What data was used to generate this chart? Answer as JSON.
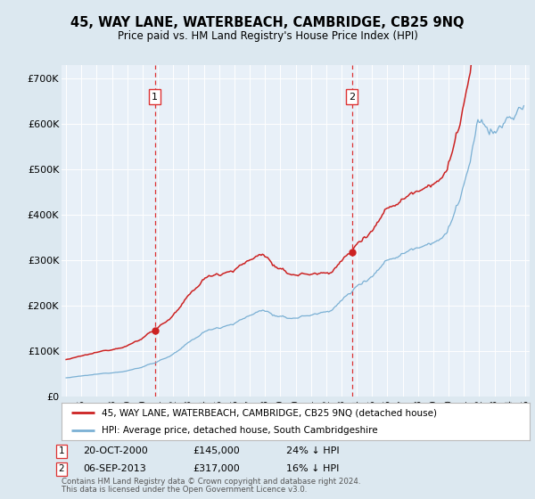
{
  "title": "45, WAY LANE, WATERBEACH, CAMBRIDGE, CB25 9NQ",
  "subtitle": "Price paid vs. HM Land Registry's House Price Index (HPI)",
  "yticks": [
    0,
    100000,
    200000,
    300000,
    400000,
    500000,
    600000,
    700000
  ],
  "ytick_labels": [
    "£0",
    "£100K",
    "£200K",
    "£300K",
    "£400K",
    "£500K",
    "£600K",
    "£700K"
  ],
  "ylim": [
    0,
    730000
  ],
  "xlim_start": 1994.7,
  "xlim_end": 2025.3,
  "hpi_color": "#7ab0d4",
  "price_color": "#cc2222",
  "dashed_color": "#dd3333",
  "marker1_date": 2000.8,
  "marker1_price": 145000,
  "marker2_date": 2013.68,
  "marker2_price": 317000,
  "legend1": "45, WAY LANE, WATERBEACH, CAMBRIDGE, CB25 9NQ (detached house)",
  "legend2": "HPI: Average price, detached house, South Cambridgeshire",
  "note1_label": "1",
  "note1_date": "20-OCT-2000",
  "note1_price": "£145,000",
  "note1_hpi": "24% ↓ HPI",
  "note2_label": "2",
  "note2_date": "06-SEP-2013",
  "note2_price": "£317,000",
  "note2_hpi": "16% ↓ HPI",
  "footnote1": "Contains HM Land Registry data © Crown copyright and database right 2024.",
  "footnote2": "This data is licensed under the Open Government Licence v3.0.",
  "bg_color": "#dce8f0",
  "plot_bg": "#e8f0f8",
  "legend_bg": "#ffffff",
  "grid_color": "#ffffff"
}
